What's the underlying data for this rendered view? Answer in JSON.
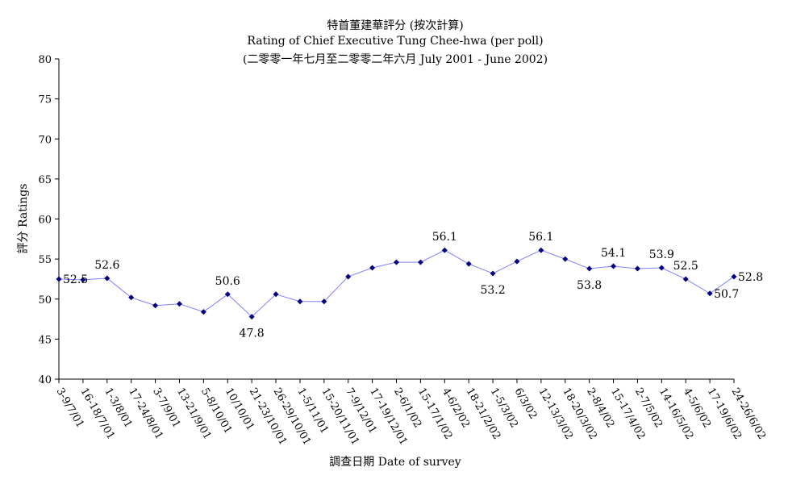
{
  "chart_data": {
    "type": "line",
    "title": "特首董建華評分 (按次計算)",
    "subtitle": "Rating of Chief Executive Tung Chee-hwa (per poll)",
    "subtitle2": "(二零零一年七月至二零零二年六月 July 2001 - June 2002)",
    "xlabel": "調查日期 Date of survey",
    "ylabel": "評分 Ratings",
    "ylim": [
      40,
      80
    ],
    "yticks": [
      "40",
      "45",
      "50",
      "55",
      "60",
      "65",
      "70",
      "75",
      "80"
    ],
    "categories": [
      "3-9/7/01",
      "16-18/7/01",
      "1-3/8/01",
      "17-24/8/01",
      "3-7/9/01",
      "13-21/9/01",
      "5-8/10/01",
      "10/10/01",
      "21-23/10/01",
      "26-29/10/01",
      "1-5/11/01",
      "15-20/11/01",
      "7-9/12/01",
      "17-19/12/01",
      "2-6/1/02",
      "15-17/1/02",
      "4-6/2/02",
      "18-21/2/02",
      "1-5/3/02",
      "6/3/02",
      "12-13/3/02",
      "18-20/3/02",
      "2-8/4/02",
      "15-17/4/02",
      "2-7/5/02",
      "14-16/5/02",
      "4-5/6/02",
      "17-19/6/02",
      "24-26/6/02"
    ],
    "values": [
      52.5,
      52.4,
      52.6,
      50.2,
      49.2,
      49.4,
      48.4,
      50.6,
      47.8,
      50.6,
      49.7,
      49.7,
      52.8,
      53.9,
      54.6,
      54.6,
      56.1,
      54.4,
      53.2,
      54.7,
      56.1,
      55.0,
      53.8,
      54.1,
      53.8,
      53.9,
      52.5,
      50.7,
      52.8
    ],
    "data_labels": [
      "52.5",
      null,
      "52.6",
      null,
      null,
      null,
      null,
      "50.6",
      "47.8",
      null,
      null,
      null,
      null,
      null,
      null,
      null,
      "56.1",
      null,
      "53.2",
      null,
      "56.1",
      null,
      "53.8",
      "54.1",
      null,
      "53.9",
      "52.5",
      "50.7",
      "52.8"
    ],
    "label_positions": [
      "right",
      null,
      "above",
      null,
      null,
      null,
      null,
      "above",
      "below",
      null,
      null,
      null,
      null,
      null,
      null,
      null,
      "above",
      null,
      "below",
      null,
      "above",
      null,
      "below",
      "above",
      null,
      "above",
      "above",
      "right",
      "right"
    ],
    "line_color": "#8080ff",
    "marker_color": "#000080",
    "grid": false,
    "legend": "none"
  }
}
